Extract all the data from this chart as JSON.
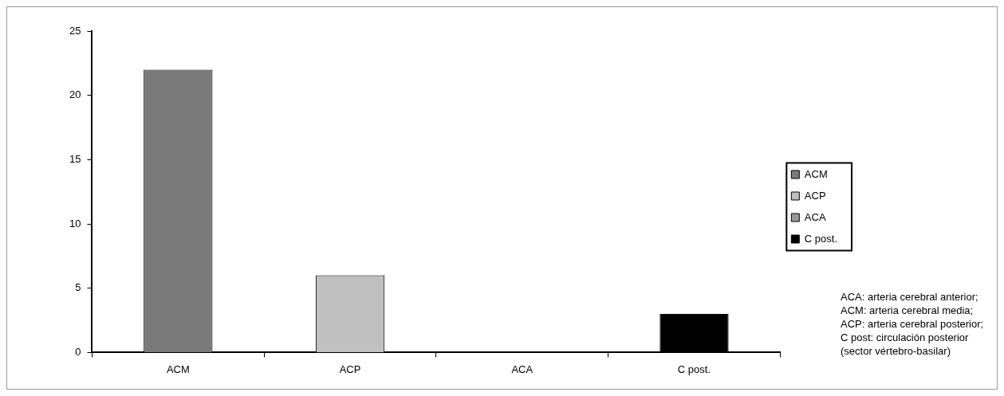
{
  "chart_data": {
    "type": "bar",
    "categories": [
      "ACM",
      "ACP",
      "ACA",
      "C post."
    ],
    "stacked": true,
    "series": [
      {
        "name": "ACM",
        "color": "#7a7a7a",
        "values": [
          22,
          null,
          null,
          null
        ]
      },
      {
        "name": "ACP",
        "color": "#c0c0c0",
        "values": [
          null,
          6,
          null,
          null
        ]
      },
      {
        "name": "ACA",
        "color": "#999999",
        "values": [
          null,
          null,
          0,
          null
        ]
      },
      {
        "name": "C post.",
        "color": "#000000",
        "values": [
          null,
          null,
          null,
          3
        ]
      }
    ],
    "ylim": [
      0,
      25
    ],
    "yticks": [
      0,
      5,
      10,
      15,
      20,
      25
    ],
    "grid": false,
    "legend": "right",
    "annotations": [
      "ACA: arteria cerebral anterior;",
      "ACM: arteria cerebral media;",
      "ACP: arteria cerebral posterior;",
      "C post: circulación posterior",
      "(sector vértebro-basilar)"
    ]
  }
}
